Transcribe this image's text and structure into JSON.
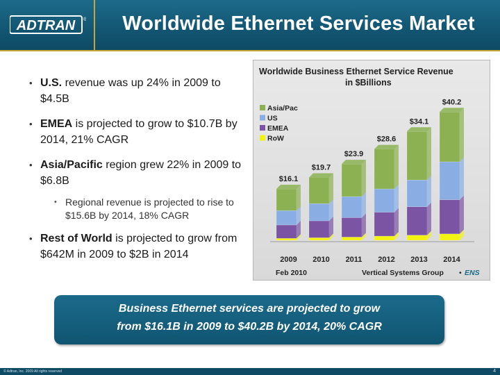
{
  "header": {
    "logo_text": "ADTRAN",
    "logo_mark": "®",
    "title": "Worldwide Ethernet Services Market"
  },
  "bullets": [
    {
      "bold": "U.S.",
      "text": " revenue was up 24% in 2009 to $4.5B"
    },
    {
      "bold": "EMEA",
      "text": " is projected to grow to $10.7B by 2014, 21% CAGR"
    },
    {
      "bold": "Asia/Pacific",
      "text": " region grew 22% in 2009 to $6.8B"
    },
    {
      "bold": "Rest of World",
      "text": " is projected to grow from $642M in 2009 to $2B in 2014"
    }
  ],
  "sub_bullet": "Regional revenue is projected to rise to $15.6B by 2014, 18% CAGR",
  "chart_data": {
    "type": "bar",
    "stacked": true,
    "title": "Worldwide Business Ethernet Service Revenue",
    "subtitle": "in $Billions",
    "categories": [
      "2009",
      "2010",
      "2011",
      "2012",
      "2013",
      "2014"
    ],
    "totals": [
      16.1,
      19.7,
      23.9,
      28.6,
      34.1,
      40.2
    ],
    "total_labels": [
      "$16.1",
      "$19.7",
      "$23.9",
      "$28.6",
      "$34.1",
      "$40.2"
    ],
    "series": [
      {
        "name": "RoW",
        "color": "#f2f213",
        "values": [
          0.6,
          0.8,
          1.0,
          1.3,
          1.6,
          2.0
        ]
      },
      {
        "name": "EMEA",
        "color": "#7b55a3",
        "values": [
          4.2,
          5.3,
          6.1,
          7.5,
          8.9,
          10.7
        ]
      },
      {
        "name": "US",
        "color": "#8aaee3",
        "values": [
          4.5,
          5.4,
          6.6,
          7.3,
          8.4,
          11.9
        ]
      },
      {
        "name": "Asia/Pac",
        "color": "#8bb152",
        "values": [
          6.8,
          8.2,
          10.2,
          12.5,
          15.2,
          15.6
        ]
      }
    ],
    "legend": [
      "Asia/Pac",
      "US",
      "EMEA",
      "RoW"
    ],
    "legend_colors": [
      "#8bb152",
      "#8aaee3",
      "#7b55a3",
      "#f2f213"
    ],
    "ylim": [
      0,
      42
    ],
    "date_note": "Feb 2010",
    "source": "Vertical Systems Group",
    "source_suffix": "ENS"
  },
  "callout": {
    "line1": "Business Ethernet services are projected to grow",
    "line2": "from $16.1B in 2009 to $40.2B by 2014, 20% CAGR"
  },
  "footer": {
    "copyright": "© Adtran, Inc. 2009 All rights reserved",
    "page_number": "4"
  }
}
